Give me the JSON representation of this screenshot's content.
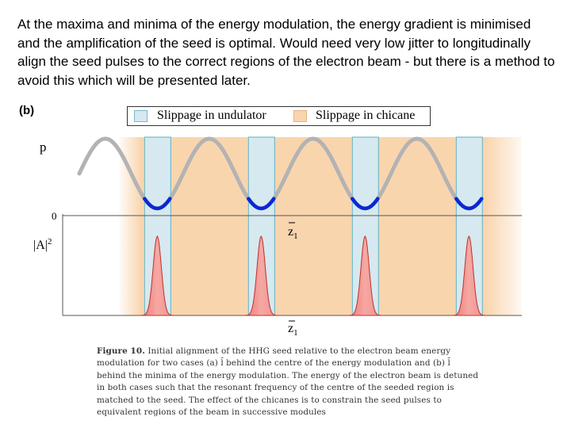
{
  "intro_text": "At the maxima and minima of the energy modulation, the energy gradient is minimised and the amplification of the seed is optimal. Would need very low jitter to longitudinally align the seed pulses to the correct regions of the electron beam - but there is a method to avoid this which will be presented later.",
  "figure": {
    "panel_label": "(b)",
    "legend": {
      "undulator_label": "Slippage in undulator",
      "chicane_label": "Slippage in chicane",
      "placement": "top-center"
    },
    "axes": {
      "top_ylabel": "p",
      "zero_label": "0",
      "bottom_ylabel": "|A|",
      "bottom_ylabel_sup": "2",
      "z_label": "z",
      "z_sub": "1"
    },
    "colors": {
      "undulator_fill": "#d6e9f0",
      "undulator_edge": "#5fb3c4",
      "chicane_fill": "#f9d5ae",
      "modulation_curve": "#b3b3b3",
      "minima_highlight": "#0a27d6",
      "pulse_fill": "#f08a8a",
      "pulse_edge": "#c0302a"
    },
    "caption": {
      "figure_label": "Figure 10.",
      "text": "Initial alignment of the HHG seed relative to the electron beam energy modulation for two cases (a) l̄ behind the centre of the energy modulation and (b) l̄ behind the minima of the energy modulation. The energy of the electron beam is detuned in both cases such that the resonant frequency of the centre of the seeded region is matched to the seed. The effect of the chicanes is to constrain the seed pulses to equivalent regions of the beam in successive modules"
    }
  },
  "chart_data": {
    "type": "line",
    "description_of_series": "sinusoidal energy modulation with seed pulses aligned to minima",
    "periods": 4,
    "pulse_count": 4,
    "pulse_alignment": "minima"
  }
}
